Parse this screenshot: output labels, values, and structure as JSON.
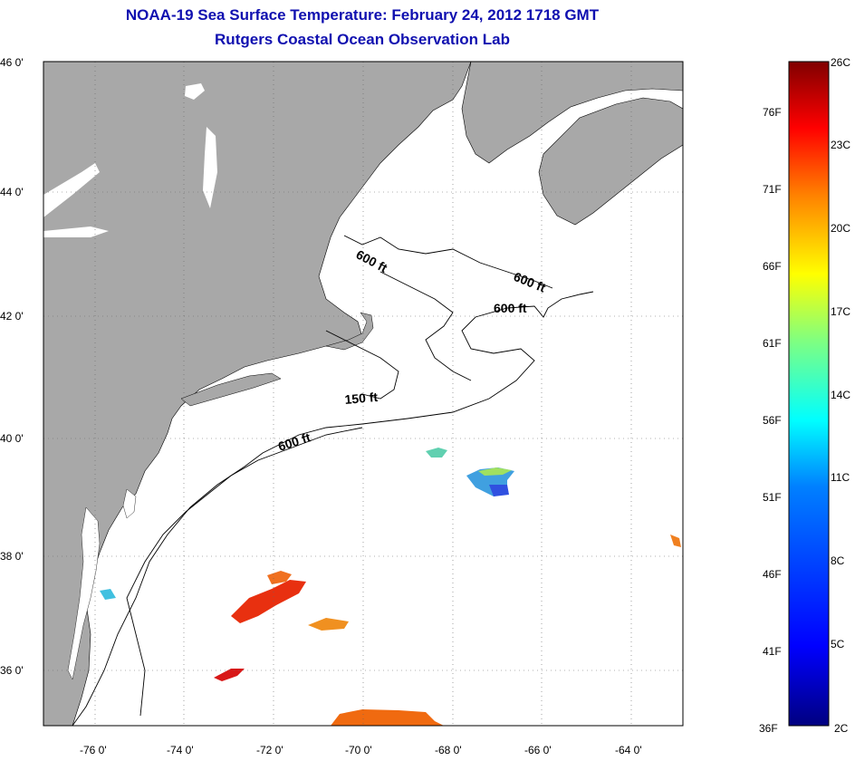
{
  "header": {
    "title": "NOAA-19 Sea Surface Temperature:  February 24, 2012 1718 GMT",
    "subtitle": "Rutgers Coastal Ocean Observation Lab"
  },
  "axes": {
    "lat_labels": [
      "46 0'",
      "44 0'",
      "42 0'",
      "40 0'",
      "38 0'",
      "36 0'"
    ],
    "lon_labels": [
      "-76 0'",
      "-74 0'",
      "-72 0'",
      "-70 0'",
      "-68 0'",
      "-66 0'",
      "-64 0'"
    ]
  },
  "contours": {
    "labels": [
      "600 ft",
      "600 ft",
      "600 ft",
      "150 ft",
      "600 ft"
    ]
  },
  "colorbar": {
    "fahrenheit": [
      "76F",
      "71F",
      "66F",
      "61F",
      "56F",
      "51F",
      "46F",
      "41F",
      "36F"
    ],
    "celsius": [
      "26C",
      "23C",
      "20C",
      "17C",
      "14C",
      "11C",
      "8C",
      "5C",
      "2C"
    ],
    "colors": [
      "#800000",
      "#ff0000",
      "#ff8000",
      "#ffff00",
      "#80ff80",
      "#00ffff",
      "#0080ff",
      "#0000ff",
      "#000080"
    ]
  },
  "colors": {
    "land": "#a8a8a8",
    "title": "#1010b0"
  }
}
